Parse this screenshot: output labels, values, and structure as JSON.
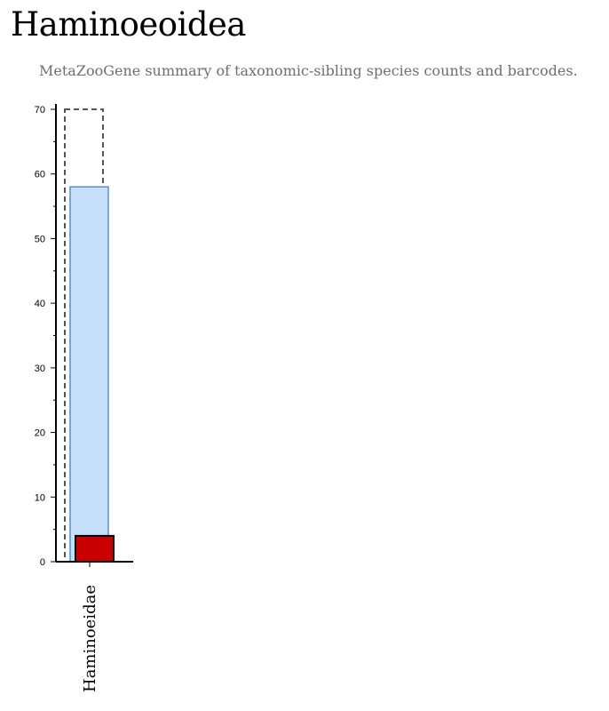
{
  "page": {
    "title": "Haminoeoidea",
    "subtitle": "MetaZooGene summary of taxonomic-sibling species counts and barcodes."
  },
  "chart_data": {
    "type": "bar",
    "categories": [
      "Haminoeidae"
    ],
    "series": [
      {
        "values": [
          70
        ],
        "style": "dashed-outline",
        "color": "#555555"
      },
      {
        "values": [
          58
        ],
        "style": "filled",
        "color": "#c6e0fb",
        "stroke": "#5b8dc9"
      },
      {
        "values": [
          4
        ],
        "style": "filled",
        "color": "#c80000",
        "stroke": "#000000"
      }
    ],
    "ylim": [
      0,
      70
    ],
    "yticks": [
      0,
      10,
      20,
      30,
      40,
      50,
      60,
      70
    ],
    "minor_ticks": true,
    "grid": false,
    "legend": "none"
  }
}
